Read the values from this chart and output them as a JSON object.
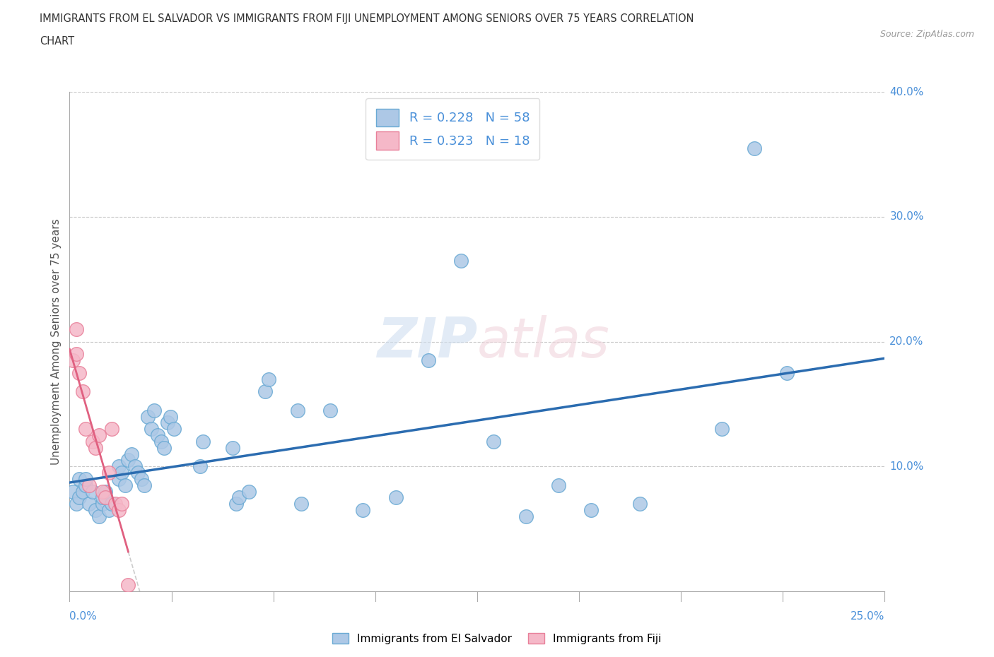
{
  "title_line1": "IMMIGRANTS FROM EL SALVADOR VS IMMIGRANTS FROM FIJI UNEMPLOYMENT AMONG SENIORS OVER 75 YEARS CORRELATION",
  "title_line2": "CHART",
  "source": "Source: ZipAtlas.com",
  "ylabel": "Unemployment Among Seniors over 75 years",
  "el_salvador_color": "#adc8e6",
  "fiji_color": "#f5b8c8",
  "el_salvador_edge": "#6aaad4",
  "fiji_edge": "#e8809a",
  "trend_el_salvador_color": "#2b6cb0",
  "trend_fiji_color": "#e06080",
  "trend_fiji_dot_color": "#cccccc",
  "R_el_salvador": 0.228,
  "N_el_salvador": 58,
  "R_fiji": 0.323,
  "N_fiji": 18,
  "legend_label_el_salvador": "Immigrants from El Salvador",
  "legend_label_fiji": "Immigrants from Fiji",
  "watermark_zip": "ZIP",
  "watermark_atlas": "atlas",
  "xlim": [
    0.0,
    0.25
  ],
  "ylim": [
    0.0,
    0.4
  ],
  "ytick_values": [
    0.1,
    0.2,
    0.3,
    0.4
  ],
  "ytick_labels": [
    "10.0%",
    "20.0%",
    "30.0%",
    "40.0%"
  ],
  "el_salvador_x": [
    0.001,
    0.002,
    0.003,
    0.003,
    0.004,
    0.005,
    0.005,
    0.006,
    0.007,
    0.008,
    0.009,
    0.01,
    0.01,
    0.011,
    0.012,
    0.013,
    0.015,
    0.015,
    0.016,
    0.017,
    0.018,
    0.019,
    0.02,
    0.021,
    0.022,
    0.023,
    0.024,
    0.025,
    0.026,
    0.027,
    0.028,
    0.029,
    0.03,
    0.031,
    0.032,
    0.04,
    0.041,
    0.05,
    0.051,
    0.052,
    0.055,
    0.06,
    0.061,
    0.07,
    0.071,
    0.08,
    0.09,
    0.1,
    0.11,
    0.12,
    0.13,
    0.14,
    0.15,
    0.16,
    0.175,
    0.2,
    0.21,
    0.22
  ],
  "el_salvador_y": [
    0.08,
    0.07,
    0.09,
    0.075,
    0.08,
    0.085,
    0.09,
    0.07,
    0.08,
    0.065,
    0.06,
    0.07,
    0.075,
    0.08,
    0.065,
    0.07,
    0.09,
    0.1,
    0.095,
    0.085,
    0.105,
    0.11,
    0.1,
    0.095,
    0.09,
    0.085,
    0.14,
    0.13,
    0.145,
    0.125,
    0.12,
    0.115,
    0.135,
    0.14,
    0.13,
    0.1,
    0.12,
    0.115,
    0.07,
    0.075,
    0.08,
    0.16,
    0.17,
    0.145,
    0.07,
    0.145,
    0.065,
    0.075,
    0.185,
    0.265,
    0.12,
    0.06,
    0.085,
    0.065,
    0.07,
    0.13,
    0.355,
    0.175
  ],
  "fiji_x": [
    0.001,
    0.002,
    0.002,
    0.003,
    0.004,
    0.005,
    0.006,
    0.007,
    0.008,
    0.009,
    0.01,
    0.011,
    0.012,
    0.013,
    0.014,
    0.015,
    0.016,
    0.018
  ],
  "fiji_y": [
    0.185,
    0.19,
    0.21,
    0.175,
    0.16,
    0.13,
    0.085,
    0.12,
    0.115,
    0.125,
    0.08,
    0.075,
    0.095,
    0.13,
    0.07,
    0.065,
    0.07,
    0.005
  ]
}
